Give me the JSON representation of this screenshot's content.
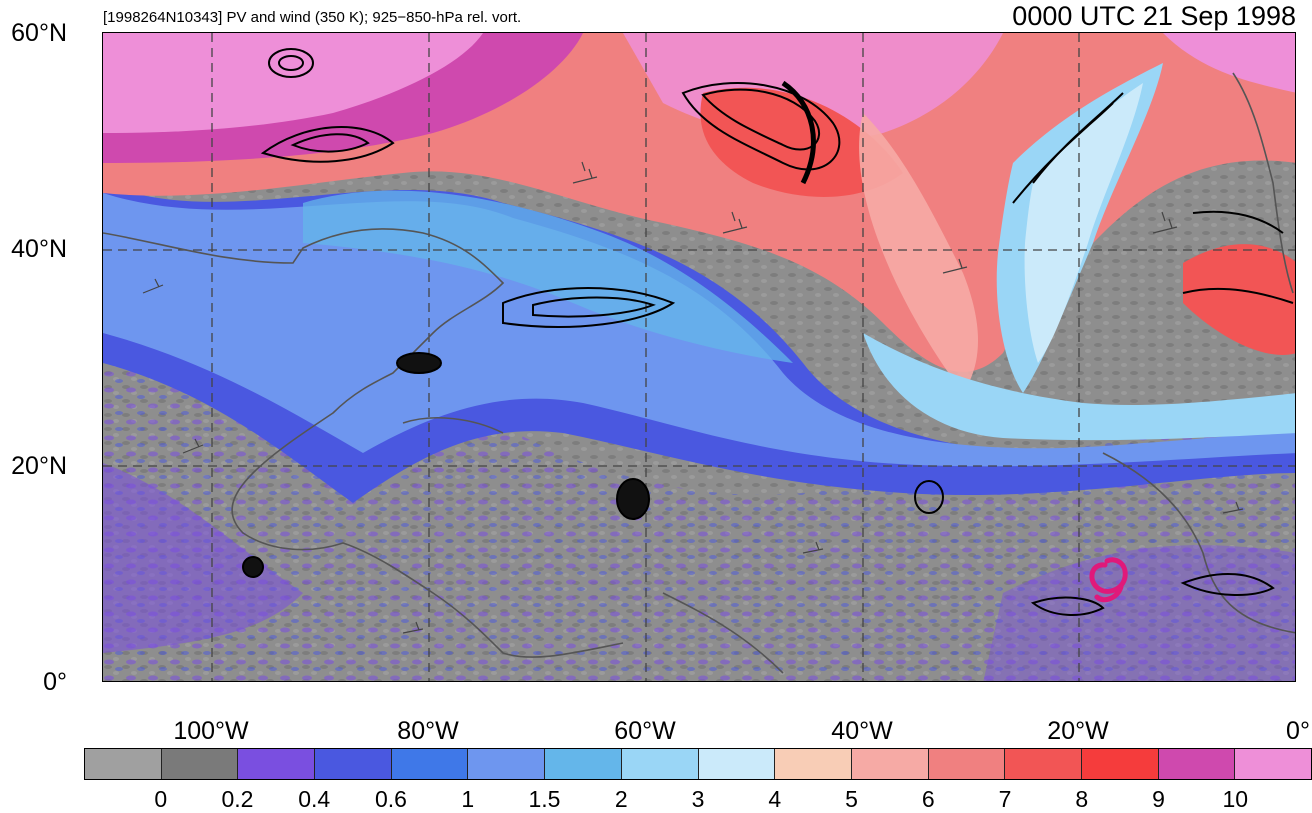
{
  "title_left": "[1998264N10343] PV and wind (350 K); 925−850-hPa rel. vort.",
  "title_right": "0000 UTC 21 Sep 1998",
  "lat_labels": [
    "60°N",
    "40°N",
    "20°N",
    "0°"
  ],
  "lon_labels": [
    "100°W",
    "80°W",
    "60°W",
    "40°W",
    "20°W",
    "0°"
  ],
  "colorbar": {
    "labels": [
      "0",
      "0.2",
      "0.4",
      "0.6",
      "1",
      "1.5",
      "2",
      "3",
      "4",
      "5",
      "6",
      "7",
      "8",
      "9",
      "10"
    ],
    "colors": [
      "#a0a0a0",
      "#7a7a7a",
      "#7a4fe0",
      "#4a58e0",
      "#3f78e8",
      "#6e96ef",
      "#64b6ea",
      "#9ad6f6",
      "#cbeafa",
      "#f8cdb6",
      "#f6aaa5",
      "#f08080",
      "#f25555",
      "#f53c3c",
      "#cf49ae",
      "#ee8fd8"
    ]
  },
  "map": {
    "lon_range": [
      -110,
      0
    ],
    "lat_range": [
      0,
      60
    ],
    "storm_symbol": "hurricane-icon",
    "storm_color": "#e0197a"
  }
}
